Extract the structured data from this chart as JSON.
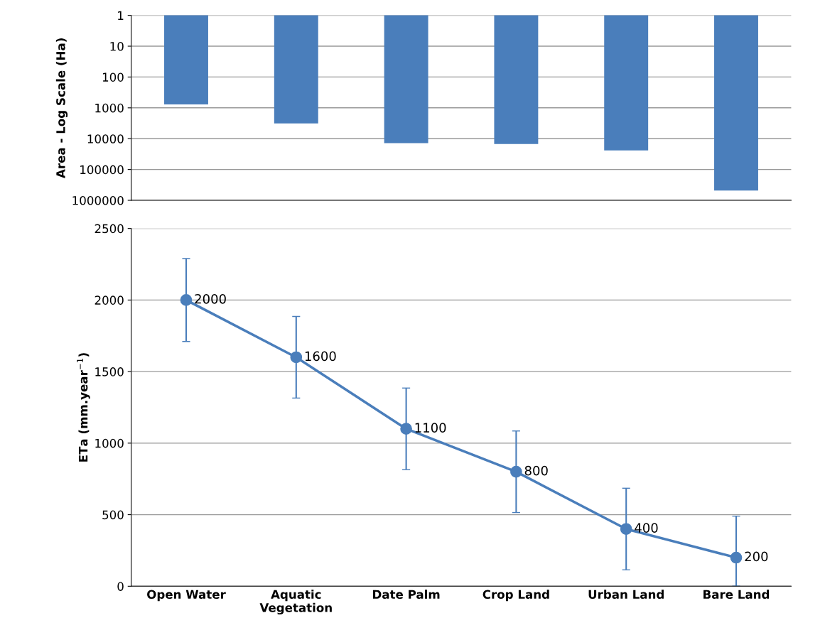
{
  "chart_data": [
    {
      "type": "bar",
      "ylabel": "Area - Log Scale (Ha)",
      "categories": [
        null,
        null,
        null,
        null,
        null,
        null
      ],
      "values": [
        770,
        3200,
        14000,
        15000,
        24000,
        480000
      ],
      "color": "#4a7ebb",
      "log": true,
      "ylim": [
        1000000,
        1
      ],
      "yticks": [
        1,
        10,
        100,
        1000,
        10000,
        100000,
        1000000
      ],
      "grid": "y",
      "tick_labels": "y"
    },
    {
      "type": "line",
      "ylabel": "ETa (mm.year$^{−1}$)",
      "categories": [
        "Open Water",
        "Aquatic\nVegetation",
        "Date Palm",
        "Crop Land",
        "Urban Land",
        "Bare Land"
      ],
      "values": [
        2000,
        1600,
        1100,
        800,
        400,
        200
      ],
      "color": "#4a7ebb",
      "errors": [
        290,
        285,
        285,
        285,
        285,
        [
          0,
          490
        ]
      ],
      "ylim": [
        0,
        2500
      ],
      "yticks": [
        0,
        500,
        1000,
        1500,
        2000,
        2500
      ],
      "grid": "y",
      "marker": "circle",
      "line_style": "solid",
      "data_labels": true
    }
  ]
}
